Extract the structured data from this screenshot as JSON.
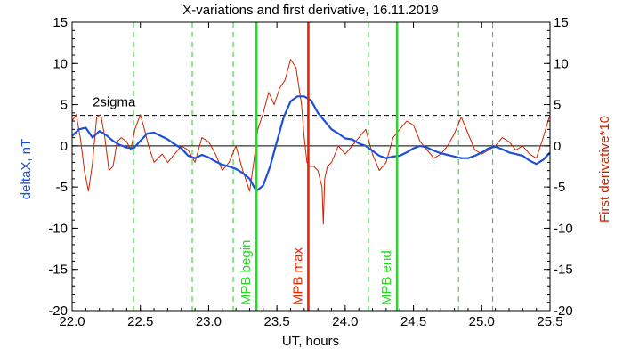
{
  "chart_data": {
    "type": "line",
    "title": "X-variations and first derivative, 16.11.2019",
    "xlabel": "UT, hours",
    "ylabel_left": "deltaX, nT",
    "ylabel_right": "First derivative*10",
    "xlim": [
      22.0,
      25.5
    ],
    "ylim": [
      -20,
      15
    ],
    "xticks": [
      "22.0",
      "22.5",
      "23.0",
      "23.5",
      "24.0",
      "24.5",
      "25.0",
      "25.5"
    ],
    "yticks": [
      "-20",
      "-15",
      "-10",
      "-5",
      "0",
      "5",
      "10",
      "15"
    ],
    "threshold": {
      "label": "2sigma",
      "value": 3.7
    },
    "vertical_markers": [
      {
        "label": "MPB begin",
        "x": 23.35,
        "color": "#22dd22"
      },
      {
        "label": "MPB max",
        "x": 23.73,
        "color": "#ee2200"
      },
      {
        "label": "MPB end",
        "x": 24.38,
        "color": "#22dd22"
      }
    ],
    "dashed_gridlines_x": [
      22.45,
      22.88,
      23.18,
      24.17,
      24.83,
      25.08
    ],
    "colors": {
      "deltaX": "#1f4fd6",
      "derivative": "#cc2200",
      "grid": "#22cc22"
    },
    "series": [
      {
        "key": "deltaX",
        "x": [
          22.0,
          22.05,
          22.1,
          22.15,
          22.2,
          22.25,
          22.3,
          22.35,
          22.4,
          22.45,
          22.5,
          22.55,
          22.6,
          22.65,
          22.7,
          22.75,
          22.8,
          22.85,
          22.9,
          22.95,
          23.0,
          23.05,
          23.1,
          23.15,
          23.2,
          23.25,
          23.3,
          23.35,
          23.4,
          23.45,
          23.5,
          23.55,
          23.6,
          23.65,
          23.7,
          23.75,
          23.8,
          23.85,
          23.9,
          23.95,
          24.0,
          24.05,
          24.1,
          24.15,
          24.2,
          24.25,
          24.3,
          24.35,
          24.4,
          24.45,
          24.5,
          24.55,
          24.6,
          24.65,
          24.7,
          24.75,
          24.8,
          24.85,
          24.9,
          24.95,
          25.0,
          25.05,
          25.1,
          25.15,
          25.2,
          25.25,
          25.3,
          25.35,
          25.4,
          25.45,
          25.5
        ],
        "values": [
          1.2,
          2.0,
          2.2,
          1.0,
          1.8,
          1.3,
          0.6,
          0.1,
          -0.2,
          -0.3,
          0.6,
          1.5,
          1.6,
          1.2,
          0.8,
          0.2,
          -0.3,
          -1.2,
          -1.5,
          -1.1,
          -1.4,
          -1.9,
          -2.3,
          -2.5,
          -2.8,
          -3.3,
          -4.0,
          -5.5,
          -4.8,
          -2.5,
          0.5,
          3.5,
          5.4,
          6.0,
          6.0,
          5.5,
          4.0,
          3.0,
          2.0,
          1.5,
          0.9,
          0.8,
          0.3,
          0.0,
          -0.6,
          -1.2,
          -1.5,
          -1.3,
          -1.2,
          -0.8,
          -0.3,
          0.0,
          -0.2,
          -0.6,
          -0.9,
          -1.1,
          -1.3,
          -1.5,
          -1.5,
          -1.2,
          -0.8,
          -0.3,
          -0.1,
          -0.4,
          -0.8,
          -1.0,
          -1.2,
          -1.8,
          -2.2,
          -1.7,
          -0.8
        ]
      },
      {
        "key": "derivative",
        "x": [
          22.0,
          22.03,
          22.06,
          22.09,
          22.12,
          22.15,
          22.18,
          22.21,
          22.24,
          22.27,
          22.3,
          22.33,
          22.36,
          22.4,
          22.43,
          22.46,
          22.5,
          22.53,
          22.56,
          22.6,
          22.63,
          22.66,
          22.7,
          22.75,
          22.8,
          22.85,
          22.9,
          22.95,
          23.0,
          23.05,
          23.1,
          23.15,
          23.2,
          23.25,
          23.3,
          23.33,
          23.36,
          23.4,
          23.44,
          23.48,
          23.52,
          23.56,
          23.6,
          23.64,
          23.68,
          23.7,
          23.72,
          23.74,
          23.77,
          23.8,
          23.83,
          23.84,
          23.85,
          23.87,
          23.9,
          23.95,
          24.0,
          24.05,
          24.1,
          24.15,
          24.2,
          24.25,
          24.3,
          24.35,
          24.4,
          24.45,
          24.5,
          24.55,
          24.6,
          24.65,
          24.7,
          24.75,
          24.8,
          24.85,
          24.9,
          24.95,
          25.0,
          25.05,
          25.1,
          25.15,
          25.2,
          25.25,
          25.3,
          25.35,
          25.4,
          25.45,
          25.5
        ],
        "values": [
          3.0,
          3.8,
          1.0,
          -3.0,
          -5.5,
          -2.0,
          3.5,
          3.8,
          1.0,
          -3.0,
          -2.5,
          0.5,
          1.0,
          0.5,
          -0.5,
          2.0,
          3.8,
          2.0,
          0.0,
          -2.0,
          -1.5,
          -1.0,
          -2.0,
          -1.0,
          0.0,
          -0.5,
          -2.0,
          1.0,
          0.5,
          -1.0,
          -3.0,
          -2.0,
          0.0,
          -3.0,
          -5.5,
          -2.0,
          2.0,
          4.0,
          6.5,
          5.0,
          7.0,
          8.0,
          10.5,
          9.5,
          5.0,
          1.0,
          -2.0,
          -2.5,
          -2.5,
          -3.0,
          -5.0,
          -9.5,
          -4.0,
          -2.5,
          -2.0,
          0.0,
          -1.0,
          0.0,
          1.0,
          2.0,
          -1.0,
          -3.0,
          -2.0,
          1.0,
          2.0,
          3.0,
          2.5,
          0.5,
          -0.5,
          -1.5,
          -1.0,
          0.0,
          1.5,
          3.5,
          1.5,
          -0.5,
          -1.0,
          -0.5,
          0.0,
          1.0,
          0.5,
          -0.5,
          0.0,
          -1.0,
          -1.5,
          1.0,
          3.8
        ]
      }
    ]
  }
}
